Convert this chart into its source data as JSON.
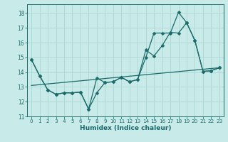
{
  "xlabel": "Humidex (Indice chaleur)",
  "background_color": "#c8eae8",
  "grid_color": "#b0d8d5",
  "line_color": "#1a6b6b",
  "xlim": [
    -0.5,
    23.5
  ],
  "ylim": [
    11,
    18.6
  ],
  "yticks": [
    11,
    12,
    13,
    14,
    15,
    16,
    17,
    18
  ],
  "xticks": [
    0,
    1,
    2,
    3,
    4,
    5,
    6,
    7,
    8,
    9,
    10,
    11,
    12,
    13,
    14,
    15,
    16,
    17,
    18,
    19,
    20,
    21,
    22,
    23
  ],
  "line1_x": [
    0,
    1,
    2,
    3,
    4,
    5,
    6,
    7,
    8,
    9,
    10,
    11,
    12,
    13,
    14,
    15,
    16,
    17,
    18,
    19,
    20,
    21,
    22,
    23
  ],
  "line1_y": [
    14.85,
    13.75,
    12.8,
    12.5,
    12.6,
    12.6,
    12.65,
    11.5,
    13.6,
    13.3,
    13.35,
    13.65,
    13.35,
    13.5,
    15.5,
    15.1,
    15.8,
    16.7,
    16.65,
    17.35,
    16.15,
    14.05,
    14.1,
    14.3
  ],
  "line2_x": [
    0,
    1,
    2,
    3,
    4,
    5,
    6,
    7,
    8,
    9,
    10,
    11,
    12,
    13,
    14,
    15,
    16,
    17,
    18,
    19,
    20,
    21,
    22,
    23
  ],
  "line2_y": [
    14.85,
    13.75,
    12.8,
    12.5,
    12.6,
    12.6,
    12.65,
    11.5,
    12.6,
    13.3,
    13.35,
    13.65,
    13.35,
    13.5,
    15.0,
    16.65,
    16.65,
    16.65,
    18.05,
    17.35,
    16.15,
    14.05,
    14.1,
    14.3
  ],
  "line3_x": [
    0,
    23
  ],
  "line3_y": [
    13.1,
    14.3
  ]
}
